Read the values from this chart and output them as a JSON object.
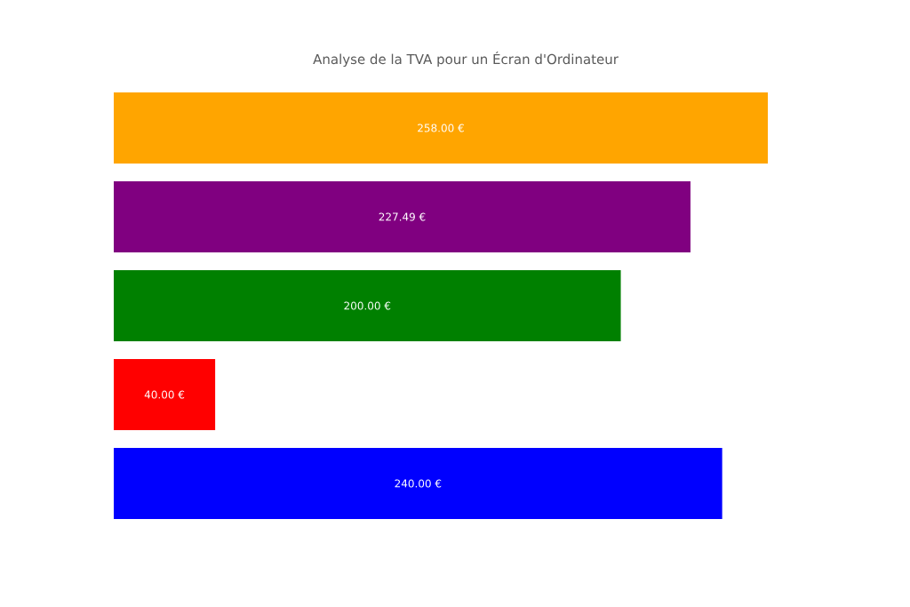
{
  "chart_data": {
    "type": "bar",
    "orientation": "horizontal",
    "title": "Analyse de la TVA pour un Écran d'Ordinateur",
    "categories": [
      null,
      null,
      null,
      null,
      null
    ],
    "values": [
      258,
      227.49,
      200,
      40,
      240
    ],
    "colors": [
      "#ffa500",
      "#800080",
      "#008000",
      "#ff0000",
      "#0000ff"
    ],
    "value_labels": [
      "258.00 €",
      "227.49 €",
      "200.00 €",
      "40.00 €",
      "240.00 €"
    ]
  }
}
